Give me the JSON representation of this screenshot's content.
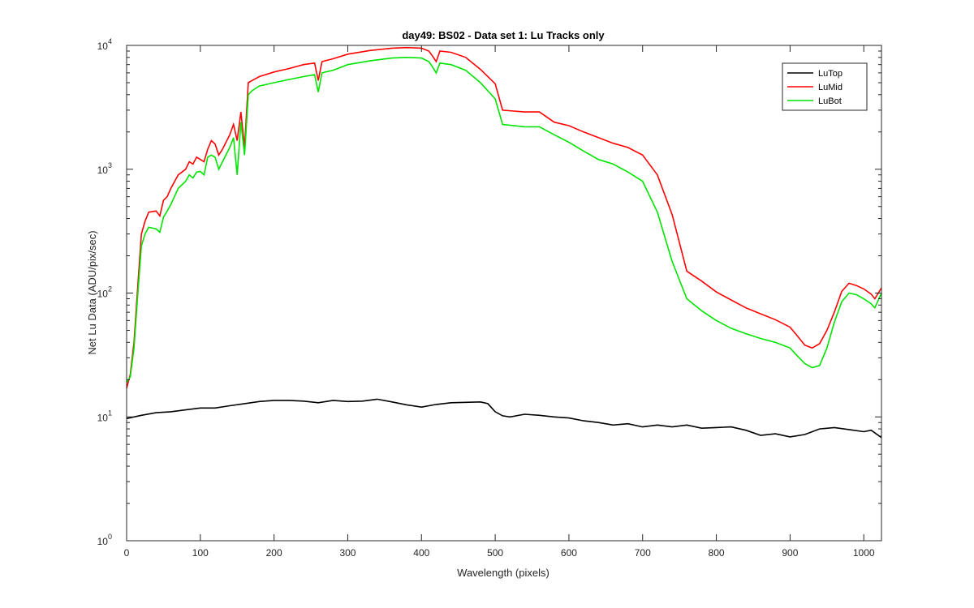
{
  "chart_data": {
    "type": "line",
    "title": "day49: BS02 - Data set 1: Lu Tracks only",
    "xlabel": "Wavelength (pixels)",
    "ylabel": "Net Lu Data (ADU/pix/sec)",
    "xlim": [
      0,
      1024
    ],
    "ylim": [
      1,
      10000
    ],
    "yscale": "log",
    "xticks": [
      "0",
      "100",
      "200",
      "300",
      "400",
      "500",
      "600",
      "700",
      "800",
      "900",
      "1000"
    ],
    "xtick_values": [
      0,
      100,
      200,
      300,
      400,
      500,
      600,
      700,
      800,
      900,
      1000
    ],
    "yticks": [
      {
        "base": "10",
        "exp": "0"
      },
      {
        "base": "10",
        "exp": "1"
      },
      {
        "base": "10",
        "exp": "2"
      },
      {
        "base": "10",
        "exp": "3"
      },
      {
        "base": "10",
        "exp": "4"
      }
    ],
    "ytick_values": [
      1,
      10,
      100,
      1000,
      10000
    ],
    "grid": false,
    "legend_position": "top-right",
    "series": [
      {
        "name": "LuTop",
        "color": "#000000",
        "x": [
          0,
          10,
          20,
          40,
          60,
          80,
          100,
          120,
          140,
          160,
          180,
          200,
          220,
          240,
          260,
          280,
          300,
          320,
          340,
          360,
          380,
          400,
          420,
          440,
          460,
          480,
          490,
          500,
          510,
          520,
          540,
          560,
          580,
          600,
          620,
          640,
          660,
          680,
          700,
          720,
          740,
          760,
          780,
          800,
          820,
          840,
          860,
          880,
          900,
          920,
          940,
          960,
          980,
          1000,
          1010,
          1024
        ],
        "y": [
          9.7,
          10.0,
          10.3,
          10.8,
          11.0,
          11.4,
          11.8,
          11.8,
          12.3,
          12.8,
          13.3,
          13.6,
          13.6,
          13.4,
          13.0,
          13.6,
          13.3,
          13.4,
          13.9,
          13.2,
          12.5,
          12.0,
          12.6,
          13.0,
          13.1,
          13.2,
          12.8,
          11.0,
          10.2,
          10.0,
          10.5,
          10.3,
          10.0,
          9.8,
          9.3,
          9.0,
          8.6,
          8.8,
          8.3,
          8.6,
          8.3,
          8.6,
          8.1,
          8.2,
          8.3,
          7.8,
          7.1,
          7.3,
          6.9,
          7.2,
          8.0,
          8.2,
          7.9,
          7.6,
          7.8,
          6.8
        ]
      },
      {
        "name": "LuMid",
        "color": "#ff0000",
        "x": [
          0,
          5,
          10,
          15,
          20,
          25,
          30,
          40,
          45,
          50,
          55,
          60,
          70,
          80,
          85,
          90,
          95,
          100,
          105,
          110,
          115,
          120,
          125,
          130,
          140,
          145,
          150,
          155,
          160,
          165,
          170,
          180,
          200,
          220,
          240,
          255,
          260,
          265,
          280,
          300,
          330,
          360,
          380,
          400,
          410,
          415,
          420,
          425,
          440,
          460,
          480,
          500,
          510,
          540,
          560,
          580,
          600,
          620,
          640,
          660,
          680,
          700,
          720,
          740,
          760,
          780,
          800,
          820,
          840,
          860,
          880,
          900,
          910,
          920,
          930,
          940,
          950,
          960,
          970,
          980,
          990,
          1000,
          1010,
          1015,
          1024
        ],
        "y": [
          17,
          22,
          40,
          110,
          300,
          380,
          450,
          460,
          420,
          560,
          600,
          700,
          900,
          1000,
          1150,
          1100,
          1250,
          1200,
          1150,
          1450,
          1700,
          1600,
          1300,
          1450,
          1900,
          2300,
          1700,
          2900,
          1500,
          5000,
          5200,
          5600,
          6100,
          6500,
          7000,
          7200,
          5200,
          7400,
          7800,
          8500,
          9100,
          9500,
          9600,
          9500,
          9000,
          8200,
          7400,
          9000,
          8800,
          8000,
          6400,
          4900,
          3000,
          2900,
          2900,
          2400,
          2250,
          2000,
          1800,
          1620,
          1500,
          1300,
          900,
          430,
          150,
          125,
          102,
          88,
          76,
          68,
          61,
          53,
          45,
          38,
          36,
          39,
          50,
          70,
          103,
          120,
          115,
          108,
          98,
          90,
          110
        ]
      },
      {
        "name": "LuBot",
        "color": "#00e400",
        "x": [
          0,
          5,
          10,
          15,
          20,
          25,
          30,
          40,
          45,
          50,
          55,
          60,
          70,
          80,
          85,
          90,
          95,
          100,
          105,
          110,
          115,
          120,
          125,
          130,
          140,
          145,
          150,
          155,
          160,
          165,
          170,
          180,
          200,
          220,
          240,
          255,
          260,
          265,
          280,
          300,
          330,
          360,
          380,
          400,
          410,
          415,
          420,
          425,
          440,
          460,
          480,
          500,
          510,
          540,
          560,
          580,
          600,
          620,
          640,
          660,
          680,
          700,
          720,
          740,
          760,
          780,
          800,
          820,
          840,
          860,
          880,
          900,
          910,
          920,
          930,
          940,
          950,
          960,
          970,
          980,
          990,
          1000,
          1010,
          1015,
          1024
        ],
        "y": [
          19,
          21,
          36,
          95,
          240,
          300,
          340,
          330,
          310,
          410,
          460,
          520,
          700,
          800,
          900,
          850,
          950,
          960,
          900,
          1250,
          1300,
          1250,
          1000,
          1150,
          1500,
          1800,
          900,
          2400,
          1300,
          4000,
          4300,
          4700,
          5000,
          5300,
          5600,
          5800,
          4200,
          6000,
          6300,
          7000,
          7500,
          7900,
          8000,
          7900,
          7400,
          6700,
          6000,
          7200,
          7000,
          6300,
          5000,
          3700,
          2300,
          2200,
          2200,
          1900,
          1650,
          1400,
          1200,
          1100,
          950,
          800,
          450,
          180,
          90,
          72,
          60,
          52,
          47,
          43,
          40,
          36,
          31,
          27,
          25,
          26,
          36,
          58,
          85,
          100,
          97,
          90,
          82,
          76,
          100
        ]
      }
    ]
  }
}
